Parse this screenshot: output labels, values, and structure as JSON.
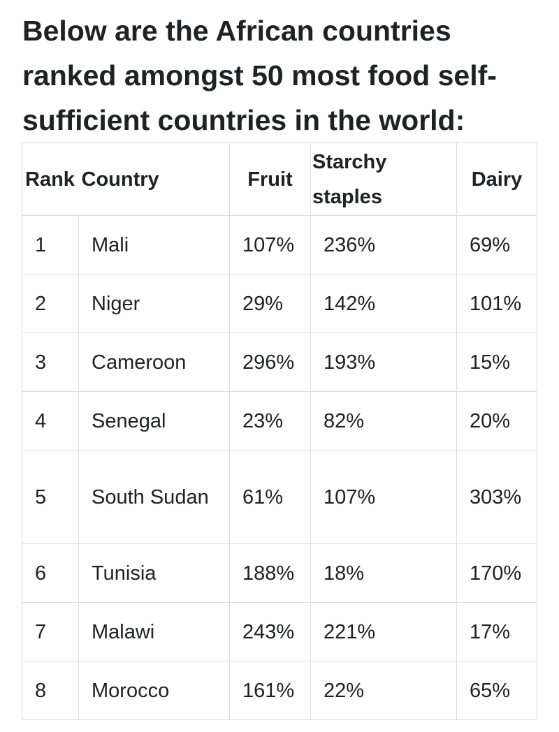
{
  "heading": "Below are the African countries ranked amongst 50 most food self-sufficient countries in the world:",
  "table": {
    "headers": {
      "rank": "Rank",
      "country": "Country",
      "fruit": "Fruit",
      "starchy_line1": "Starchy",
      "starchy_line2": "staples",
      "dairy": "Dairy"
    },
    "rows": [
      {
        "rank": "1",
        "country": "Mali",
        "fruit": "107%",
        "starchy": "236%",
        "dairy": "69%"
      },
      {
        "rank": "2",
        "country": "Niger",
        "fruit": "29%",
        "starchy": "142%",
        "dairy": "101%"
      },
      {
        "rank": "3",
        "country": "Cameroon",
        "fruit": "296%",
        "starchy": "193%",
        "dairy": "15%"
      },
      {
        "rank": "4",
        "country": "Senegal",
        "fruit": "23%",
        "starchy": "82%",
        "dairy": "20%"
      },
      {
        "rank": "5",
        "country": "South Sudan",
        "fruit": "61%",
        "starchy": "107%",
        "dairy": "303%"
      },
      {
        "rank": "6",
        "country": "Tunisia",
        "fruit": "188%",
        "starchy": "18%",
        "dairy": "170%"
      },
      {
        "rank": "7",
        "country": "Malawi",
        "fruit": "243%",
        "starchy": "221%",
        "dairy": "17%"
      },
      {
        "rank": "8",
        "country": "Morocco",
        "fruit": "161%",
        "starchy": "22%",
        "dairy": "65%"
      }
    ]
  }
}
